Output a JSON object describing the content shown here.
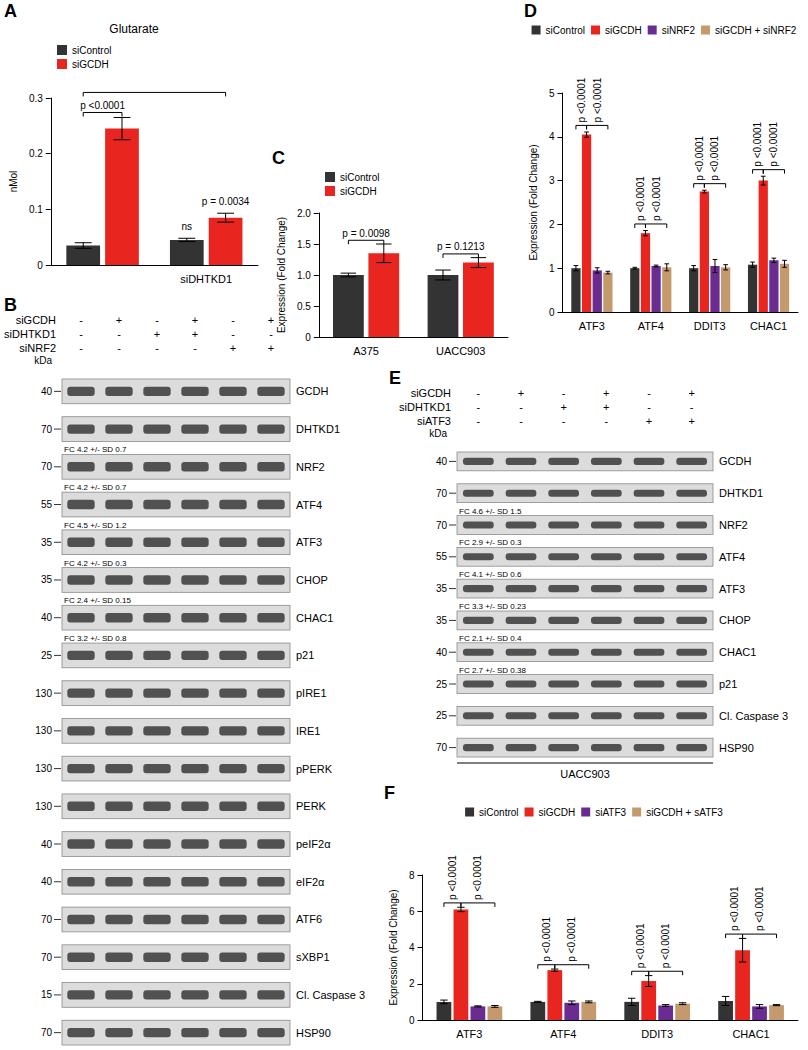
{
  "chart_data": [
    {
      "panel": "A",
      "type": "bar",
      "title": "Glutarate",
      "ylabel": "nMol",
      "categories": [
        null,
        "siDHTKD1"
      ],
      "series": [
        {
          "name": "siControl",
          "color": "#333333",
          "values": [
            0.035,
            0.045
          ],
          "errors": [
            0.005,
            0.003
          ]
        },
        {
          "name": "siGCDH",
          "color": "#e8251f",
          "values": [
            0.245,
            0.085
          ],
          "errors": [
            0.02,
            0.008
          ]
        }
      ],
      "ylim": [
        0,
        0.3
      ],
      "yticks": [
        0,
        0.1,
        0.2,
        0.3
      ],
      "grid": false,
      "legend": "top-left",
      "annotations": [
        {
          "from": [
            0,
            0
          ],
          "to": [
            0,
            1
          ],
          "text": "p <0.0001"
        },
        {
          "from": [
            1,
            0
          ],
          "to": [
            1,
            0
          ],
          "text": "ns"
        },
        {
          "from": [
            1,
            1
          ],
          "to": [
            1,
            1
          ],
          "text": "p = 0.0034"
        },
        {
          "from": [
            0,
            0
          ],
          "to": [
            1,
            1
          ]
        }
      ]
    },
    {
      "panel": "C",
      "type": "bar",
      "ylabel": "Expression (Fold Change)",
      "categories": [
        "A375",
        "UACC903"
      ],
      "series": [
        {
          "name": "siControl",
          "color": "#333333",
          "values": [
            1.0,
            1.0
          ],
          "errors": [
            0.03,
            0.08
          ]
        },
        {
          "name": "siGCDH",
          "color": "#e8251f",
          "values": [
            1.35,
            1.2
          ],
          "errors": [
            0.15,
            0.08
          ]
        }
      ],
      "ylim": [
        0,
        2
      ],
      "yticks": [
        0,
        0.5,
        {
          "value": 1,
          "label": "1.0"
        },
        1.5,
        {
          "value": 2,
          "label": "2.0"
        }
      ],
      "grid": false,
      "legend": "top-left",
      "annotations": [
        {
          "from": [
            0,
            0
          ],
          "to": [
            0,
            1
          ],
          "text": "p = 0.0098"
        },
        {
          "from": [
            1,
            0
          ],
          "to": [
            1,
            1
          ],
          "text": "p = 0.1213"
        }
      ]
    },
    {
      "panel": "D",
      "type": "bar",
      "ylabel": "Expression (Fold Change)",
      "categories": [
        "ATF3",
        "ATF4",
        "DDIT3",
        "CHAC1"
      ],
      "series": [
        {
          "name": "siControl",
          "color": "#333333",
          "values": [
            1.0,
            1.0,
            1.0,
            1.08
          ],
          "errors": [
            0.06,
            0.02,
            0.06,
            0.06
          ]
        },
        {
          "name": "siGCDH",
          "color": "#e8251f",
          "values": [
            4.05,
            1.8,
            2.75,
            3.0
          ],
          "errors": [
            0.06,
            0.06,
            0.03,
            0.1
          ]
        },
        {
          "name": "siNRF2",
          "color": "#6a2c91",
          "values": [
            0.95,
            1.05,
            1.05,
            1.18
          ],
          "errors": [
            0.06,
            0.02,
            0.15,
            0.05
          ]
        },
        {
          "name": "siGCDH + siNRF2",
          "color": "#c49a6c",
          "values": [
            0.9,
            1.02,
            1.02,
            1.1
          ],
          "errors": [
            0.03,
            0.08,
            0.06,
            0.08
          ]
        }
      ],
      "ylim": [
        0,
        5
      ],
      "yticks": [
        0,
        1,
        2,
        3,
        4,
        5
      ],
      "grid": false,
      "legend": "top",
      "annotations": [
        {
          "from": [
            0,
            0
          ],
          "to": [
            0,
            1
          ],
          "text": "p <0.0001"
        },
        {
          "from": [
            0,
            1
          ],
          "to": [
            0,
            3
          ],
          "text": "p <0.0001"
        },
        {
          "from": [
            1,
            0
          ],
          "to": [
            1,
            1
          ],
          "text": "p <0.0001"
        },
        {
          "from": [
            1,
            1
          ],
          "to": [
            1,
            3
          ],
          "text": "p <0.0001"
        },
        {
          "from": [
            2,
            0
          ],
          "to": [
            2,
            1
          ],
          "text": "p <0.0001"
        },
        {
          "from": [
            2,
            1
          ],
          "to": [
            2,
            3
          ],
          "text": "p <0.0001"
        },
        {
          "from": [
            3,
            0
          ],
          "to": [
            3,
            1
          ],
          "text": "p <0.0001"
        },
        {
          "from": [
            3,
            1
          ],
          "to": [
            3,
            3
          ],
          "text": "p <0.0001"
        }
      ]
    },
    {
      "panel": "F",
      "type": "bar",
      "ylabel": "Expression (Fold Change)",
      "categories": [
        "ATF3",
        "ATF4",
        "DDIT3",
        "CHAC1"
      ],
      "series": [
        {
          "name": "siControl",
          "color": "#333333",
          "values": [
            1.0,
            1.0,
            1.0,
            1.05
          ],
          "errors": [
            0.1,
            0.03,
            0.2,
            0.25
          ]
        },
        {
          "name": "siGCDH",
          "color": "#e8251f",
          "values": [
            6.1,
            2.75,
            2.15,
            3.85
          ],
          "errors": [
            0.12,
            0.06,
            0.3,
            0.65
          ]
        },
        {
          "name": "siATF3",
          "color": "#6a2c91",
          "values": [
            0.75,
            0.95,
            0.8,
            0.75
          ],
          "errors": [
            0.03,
            0.1,
            0.05,
            0.1
          ]
        },
        {
          "name": "siGCDH + sATF3",
          "color": "#c49a6c",
          "values": [
            0.75,
            1.0,
            0.9,
            0.82
          ],
          "errors": [
            0.05,
            0.05,
            0.05,
            0.03
          ]
        }
      ],
      "ylim": [
        0,
        8
      ],
      "yticks": [
        0,
        2,
        4,
        6,
        8
      ],
      "grid": false,
      "legend": "top",
      "annotations": [
        {
          "from": [
            0,
            0
          ],
          "to": [
            0,
            1
          ],
          "text": "p <0.0001"
        },
        {
          "from": [
            0,
            1
          ],
          "to": [
            0,
            3
          ],
          "text": "p <0.0001"
        },
        {
          "from": [
            1,
            0
          ],
          "to": [
            1,
            1
          ],
          "text": "p <0.0001"
        },
        {
          "from": [
            1,
            1
          ],
          "to": [
            1,
            3
          ],
          "text": "p <0.0001"
        },
        {
          "from": [
            2,
            0
          ],
          "to": [
            2,
            1
          ],
          "text": "p <0.0001"
        },
        {
          "from": [
            2,
            1
          ],
          "to": [
            2,
            3
          ],
          "text": "p <0.0001"
        },
        {
          "from": [
            3,
            0
          ],
          "to": [
            3,
            1
          ],
          "text": "p <0.0001"
        },
        {
          "from": [
            3,
            1
          ],
          "to": [
            3,
            3
          ],
          "text": "p <0.0001"
        }
      ]
    }
  ],
  "blots": [
    {
      "panel": "B",
      "kda_label": "kDa",
      "conditions": [
        {
          "name": "siGCDH",
          "signs": [
            "-",
            "+",
            "-",
            "+",
            "-",
            "+"
          ]
        },
        {
          "name": "siDHTKD1",
          "signs": [
            "-",
            "-",
            "+",
            "+",
            "-",
            "-"
          ]
        },
        {
          "name": "siNRF2",
          "signs": [
            "-",
            "-",
            "-",
            "-",
            "+",
            "+"
          ]
        }
      ],
      "rows": [
        {
          "protein": "GCDH",
          "kda": 40
        },
        {
          "protein": "DHTKD1",
          "kda": 70
        },
        {
          "protein": "NRF2",
          "kda": 70,
          "fc": "FC 4.2 +/- SD 0.7"
        },
        {
          "protein": "ATF4",
          "kda": 55,
          "fc": "FC 4.2 +/- SD 0.7"
        },
        {
          "protein": "ATF3",
          "kda": 35,
          "fc": "FC 4.5 +/- SD 1.2"
        },
        {
          "protein": "CHOP",
          "kda": 35,
          "fc": "FC 4.2 +/- SD 0.3"
        },
        {
          "protein": "CHAC1",
          "kda": 40,
          "fc": "FC 2.4 +/- SD 0.15"
        },
        {
          "protein": "p21",
          "kda": 25,
          "fc": "FC 3.2 +/- SD 0.8"
        },
        {
          "protein": "pIRE1",
          "kda": 130
        },
        {
          "protein": "IRE1",
          "kda": 130
        },
        {
          "protein": "pPERK",
          "kda": 130
        },
        {
          "protein": "PERK",
          "kda": 130
        },
        {
          "protein": "peIF2α",
          "kda": 40
        },
        {
          "protein": "eIF2α",
          "kda": 40
        },
        {
          "protein": "ATF6",
          "kda": 70
        },
        {
          "protein": "sXBP1",
          "kda": 70
        },
        {
          "protein": "Cl. Caspase 3",
          "kda": 15
        },
        {
          "protein": "HSP90",
          "kda": 70
        }
      ]
    },
    {
      "panel": "E",
      "kda_label": "kDa",
      "cell_line": "UACC903",
      "conditions": [
        {
          "name": "siGCDH",
          "signs": [
            "-",
            "+",
            "-",
            "+",
            "-",
            "+"
          ]
        },
        {
          "name": "siDHTKD1",
          "signs": [
            "-",
            "-",
            "+",
            "+",
            "-",
            "-"
          ]
        },
        {
          "name": "siATF3",
          "signs": [
            "-",
            "-",
            "-",
            "-",
            "+",
            "+"
          ]
        }
      ],
      "rows": [
        {
          "protein": "GCDH",
          "kda": 40
        },
        {
          "protein": "DHTKD1",
          "kda": 70
        },
        {
          "protein": "NRF2",
          "kda": 70,
          "fc": "FC 4.6 +/- SD 1.5"
        },
        {
          "protein": "ATF4",
          "kda": 55,
          "fc": "FC 2.9 +/- SD 0.3"
        },
        {
          "protein": "ATF3",
          "kda": 35,
          "fc": "FC 4.1 +/- SD 0.6"
        },
        {
          "protein": "CHOP",
          "kda": 35,
          "fc": "FC 3.3 +/- SD 0.23"
        },
        {
          "protein": "CHAC1",
          "kda": 40,
          "fc": "FC 2.1 +/- SD 0.4"
        },
        {
          "protein": "p21",
          "kda": 25,
          "fc": "FC 2.7 +/- SD 0.38"
        },
        {
          "protein": "Cl. Caspase 3",
          "kda": 25
        },
        {
          "protein": "HSP90",
          "kda": 70
        }
      ]
    }
  ]
}
